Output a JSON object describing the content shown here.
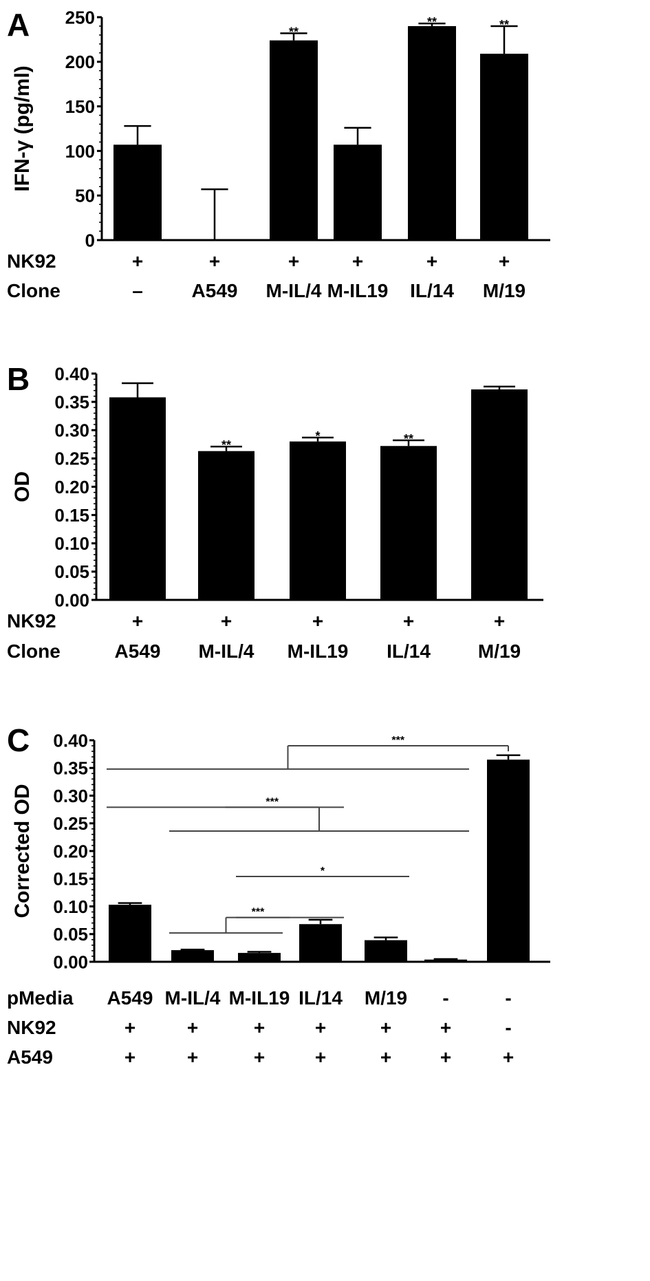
{
  "colors": {
    "bar": "#000000",
    "axis": "#000000",
    "bracket": "#444444"
  },
  "chart_data": [
    {
      "panel": "A",
      "type": "bar",
      "ylabel": "IFN-γ (pg/ml)",
      "ylim": [
        0,
        250
      ],
      "yticks": [
        "0",
        "50",
        "100",
        "150",
        "200",
        "250"
      ],
      "categories": [
        "–",
        "A549",
        "M-IL/4",
        "M-IL19",
        "IL/14",
        "M/19"
      ],
      "values": [
        107,
        0,
        224,
        107,
        240,
        209
      ],
      "errors": [
        21,
        57,
        8,
        19,
        3,
        31
      ],
      "sig": [
        "",
        "",
        "**",
        "",
        "**",
        "**"
      ],
      "row_labels": [
        "NK92",
        "Clone"
      ],
      "rows": [
        [
          "+",
          "+",
          "+",
          "+",
          "+",
          "+"
        ],
        [
          "–",
          "A549",
          "M-IL/4",
          "M-IL19",
          "IL/14",
          "M/19"
        ]
      ]
    },
    {
      "panel": "B",
      "type": "bar",
      "ylabel": "OD",
      "ylim": [
        0,
        0.4
      ],
      "yticks": [
        "0.00",
        "0.05",
        "0.10",
        "0.15",
        "0.20",
        "0.25",
        "0.30",
        "0.35",
        "0.40"
      ],
      "categories": [
        "A549",
        "M-IL/4",
        "M-IL19",
        "IL/14",
        "M/19"
      ],
      "values": [
        0.358,
        0.263,
        0.28,
        0.272,
        0.372
      ],
      "errors": [
        0.025,
        0.008,
        0.007,
        0.01,
        0.005
      ],
      "sig": [
        "",
        "**",
        "*",
        "**",
        ""
      ],
      "row_labels": [
        "NK92",
        "Clone"
      ],
      "rows": [
        [
          "+",
          "+",
          "+",
          "+",
          "+"
        ],
        [
          "A549",
          "M-IL/4",
          "M-IL19",
          "IL/14",
          "M/19"
        ]
      ]
    },
    {
      "panel": "C",
      "type": "bar",
      "ylabel": "Corrected OD",
      "ylim": [
        0,
        0.4
      ],
      "yticks": [
        "0.00",
        "0.05",
        "0.10",
        "0.15",
        "0.20",
        "0.25",
        "0.30",
        "0.35",
        "0.40"
      ],
      "categories": [
        "A549",
        "M-IL/4",
        "M-IL19",
        "IL/14",
        "M/19",
        "-",
        "-"
      ],
      "values": [
        0.103,
        0.021,
        0.016,
        0.068,
        0.039,
        0.004,
        0.365
      ],
      "errors": [
        0.003,
        0.001,
        0.002,
        0.008,
        0.005,
        0.001,
        0.008
      ],
      "row_labels": [
        "pMedia",
        "NK92",
        "A549"
      ],
      "rows": [
        [
          "A549",
          "M-IL/4",
          "M-IL19",
          "IL/14",
          "M/19",
          "-",
          "-"
        ],
        [
          "+",
          "+",
          "+",
          "+",
          "+",
          "+",
          "-"
        ],
        [
          "+",
          "+",
          "+",
          "+",
          "+",
          "+",
          "+"
        ]
      ],
      "brackets": [
        {
          "left": [
            0,
            5
          ],
          "right": [
            6,
            6
          ],
          "y_left": 0.348,
          "y_right": 0.38,
          "y_top": 0.39,
          "label": "***"
        },
        {
          "left": [
            0,
            3
          ],
          "right": [
            1,
            5
          ],
          "y_left": 0.279,
          "y_right": 0.236,
          "y_top": 0.279,
          "label": "***"
        },
        {
          "left": [
            2,
            4
          ],
          "right": null,
          "y_left": 0.154,
          "y_right": null,
          "y_top": 0.154,
          "label": "*"
        },
        {
          "left": [
            1,
            2
          ],
          "right": [
            2,
            3
          ],
          "y_left": 0.052,
          "y_right": 0.08,
          "y_top": 0.08,
          "label": "***"
        }
      ]
    }
  ],
  "panel_labels": [
    "A",
    "B",
    "C"
  ]
}
